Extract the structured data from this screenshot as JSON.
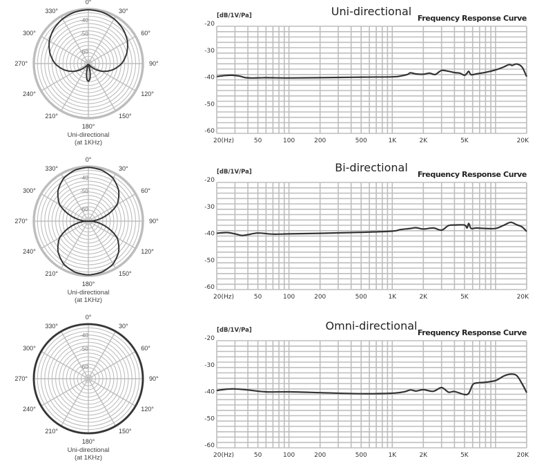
{
  "chart_data": [
    {
      "type": "polar",
      "caption_line1": "Uni-directional",
      "caption_line2": "(at 1KHz)",
      "angle_labels": [
        "0°",
        "30°",
        "60°",
        "90°",
        "120°",
        "150°",
        "180°",
        "210°",
        "240°",
        "270°",
        "300°",
        "330°"
      ],
      "ring_labels": [
        "-40",
        "-50",
        "-60"
      ],
      "pattern": "cardioid-supercardioid",
      "angles_deg": [
        0,
        15,
        30,
        45,
        60,
        75,
        90,
        105,
        120,
        135,
        150,
        165,
        170,
        175,
        180,
        185,
        190,
        195,
        210,
        225,
        240,
        255,
        270,
        285,
        300,
        315,
        330,
        345,
        360
      ],
      "relative_level": [
        1.0,
        0.99,
        0.96,
        0.91,
        0.84,
        0.74,
        0.62,
        0.46,
        0.28,
        0.1,
        0.02,
        0.05,
        0.2,
        0.3,
        0.33,
        0.3,
        0.2,
        0.05,
        0.02,
        0.1,
        0.28,
        0.46,
        0.62,
        0.74,
        0.84,
        0.91,
        0.96,
        0.99,
        1.0
      ]
    },
    {
      "type": "line",
      "title": "Uni-directional",
      "subtitle": "Frequency Response Curve",
      "ylabel": "[dB/1V/Pa]",
      "ylim": [
        -60,
        -20
      ],
      "yticks": [
        "-20",
        "-30",
        "-40",
        "-50",
        "-60"
      ],
      "xticks": [
        "20(Hz)",
        "50",
        "100",
        "200",
        "500",
        "1K",
        "2K",
        "5K",
        "20K"
      ],
      "xtick_values": [
        20,
        50,
        100,
        200,
        500,
        1000,
        2000,
        5000,
        20000
      ],
      "xlim": [
        20,
        20000
      ],
      "xscale": "log",
      "grid": true,
      "x": [
        20,
        24,
        28,
        33,
        38,
        45,
        60,
        100,
        200,
        500,
        1000,
        1200,
        1400,
        1500,
        1700,
        2000,
        2300,
        2600,
        3000,
        3500,
        4000,
        4500,
        5000,
        5300,
        5500,
        5800,
        6500,
        8000,
        10000,
        12000,
        13500,
        14500,
        16000,
        18000,
        20000
      ],
      "y": [
        -38.8,
        -38.4,
        -38.3,
        -38.6,
        -39.2,
        -39.3,
        -39.2,
        -39.3,
        -39.2,
        -39.0,
        -38.9,
        -38.6,
        -38.0,
        -37.4,
        -37.8,
        -37.9,
        -37.5,
        -38.0,
        -36.5,
        -36.8,
        -37.3,
        -37.5,
        -38.3,
        -37.5,
        -36.8,
        -38.1,
        -37.8,
        -37.2,
        -36.3,
        -35.2,
        -34.3,
        -34.6,
        -34.1,
        -35.2,
        -38.8
      ]
    },
    {
      "type": "polar",
      "caption_line1": "Uni-directional",
      "caption_line2": "(at 1KHz)",
      "angle_labels": [
        "0°",
        "30°",
        "60°",
        "90°",
        "120°",
        "150°",
        "180°",
        "210°",
        "240°",
        "270°",
        "300°",
        "330°"
      ],
      "ring_labels": [
        "-40",
        "-50",
        "-60"
      ],
      "pattern": "figure-8",
      "angles_deg": [
        0,
        15,
        30,
        45,
        60,
        75,
        90,
        105,
        120,
        135,
        150,
        165,
        180,
        195,
        210,
        225,
        240,
        255,
        270,
        285,
        300,
        315,
        330,
        345,
        360
      ],
      "relative_level": [
        1.0,
        0.98,
        0.92,
        0.8,
        0.62,
        0.3,
        0.0,
        0.3,
        0.62,
        0.8,
        0.92,
        0.98,
        1.0,
        0.98,
        0.92,
        0.8,
        0.62,
        0.3,
        0.0,
        0.3,
        0.62,
        0.8,
        0.92,
        0.98,
        1.0
      ]
    },
    {
      "type": "line",
      "title": "Bi-directional",
      "subtitle": "Frequency Response Curve",
      "ylabel": "[dB/1V/Pa]",
      "ylim": [
        -60,
        -20
      ],
      "yticks": [
        "-20",
        "-30",
        "-40",
        "-50",
        "-60"
      ],
      "xticks": [
        "20(Hz)",
        "50",
        "100",
        "200",
        "500",
        "1K",
        "2K",
        "5K",
        "20K"
      ],
      "xtick_values": [
        20,
        50,
        100,
        200,
        500,
        1000,
        2000,
        5000,
        20000
      ],
      "xlim": [
        20,
        20000
      ],
      "xscale": "log",
      "grid": true,
      "x": [
        20,
        25,
        30,
        35,
        40,
        50,
        70,
        100,
        200,
        500,
        1000,
        1200,
        1500,
        1700,
        2000,
        2500,
        3000,
        3500,
        4000,
        5000,
        5300,
        5500,
        5800,
        6500,
        8000,
        10000,
        12000,
        14000,
        16000,
        18000,
        20000
      ],
      "y": [
        -39.0,
        -38.7,
        -39.2,
        -39.8,
        -39.5,
        -38.9,
        -39.3,
        -39.2,
        -39.0,
        -38.6,
        -38.2,
        -37.6,
        -37.2,
        -36.9,
        -37.4,
        -37.0,
        -37.8,
        -36.1,
        -35.9,
        -35.9,
        -37.0,
        -35.3,
        -37.2,
        -37.0,
        -37.2,
        -37.2,
        -36.0,
        -34.9,
        -35.8,
        -36.6,
        -38.3
      ]
    },
    {
      "type": "polar",
      "caption_line1": "Uni-directional",
      "caption_line2": "(at 1KHz)",
      "angle_labels": [
        "0°",
        "30°",
        "60°",
        "90°",
        "120°",
        "150°",
        "180°",
        "210°",
        "240°",
        "270°",
        "300°",
        "330°"
      ],
      "ring_labels": [
        "-40",
        "-50",
        "-60"
      ],
      "pattern": "omni",
      "angles_deg": [
        0,
        90,
        180,
        270,
        360
      ],
      "relative_level": [
        1.0,
        1.0,
        1.0,
        1.0,
        1.0
      ]
    },
    {
      "type": "line",
      "title": "Omni-directional",
      "subtitle": "Frequency Response Curve",
      "ylabel": "[dB/1V/Pa]",
      "ylim": [
        -60,
        -20
      ],
      "yticks": [
        "-20",
        "-30",
        "-40",
        "-50",
        "-60"
      ],
      "xticks": [
        "20(Hz)",
        "50",
        "100",
        "200",
        "500",
        "1K",
        "2K",
        "5K",
        "20K"
      ],
      "xtick_values": [
        20,
        50,
        100,
        200,
        500,
        1000,
        2000,
        5000,
        20000
      ],
      "xlim": [
        20,
        20000
      ],
      "xscale": "log",
      "grid": true,
      "x": [
        20,
        25,
        30,
        40,
        60,
        100,
        200,
        500,
        1000,
        1300,
        1500,
        1700,
        2000,
        2500,
        3000,
        3500,
        4000,
        5000,
        5500,
        6000,
        6500,
        8000,
        10000,
        12000,
        14000,
        16000,
        18000,
        20000
      ],
      "y": [
        -38.6,
        -38.1,
        -38.0,
        -38.4,
        -39.1,
        -39.1,
        -39.4,
        -39.8,
        -39.6,
        -39.1,
        -38.4,
        -38.8,
        -38.3,
        -38.9,
        -37.5,
        -39.2,
        -39.0,
        -40.1,
        -39.6,
        -36.5,
        -35.8,
        -35.5,
        -34.9,
        -33.2,
        -32.5,
        -33.0,
        -36.0,
        -39.4
      ]
    }
  ]
}
